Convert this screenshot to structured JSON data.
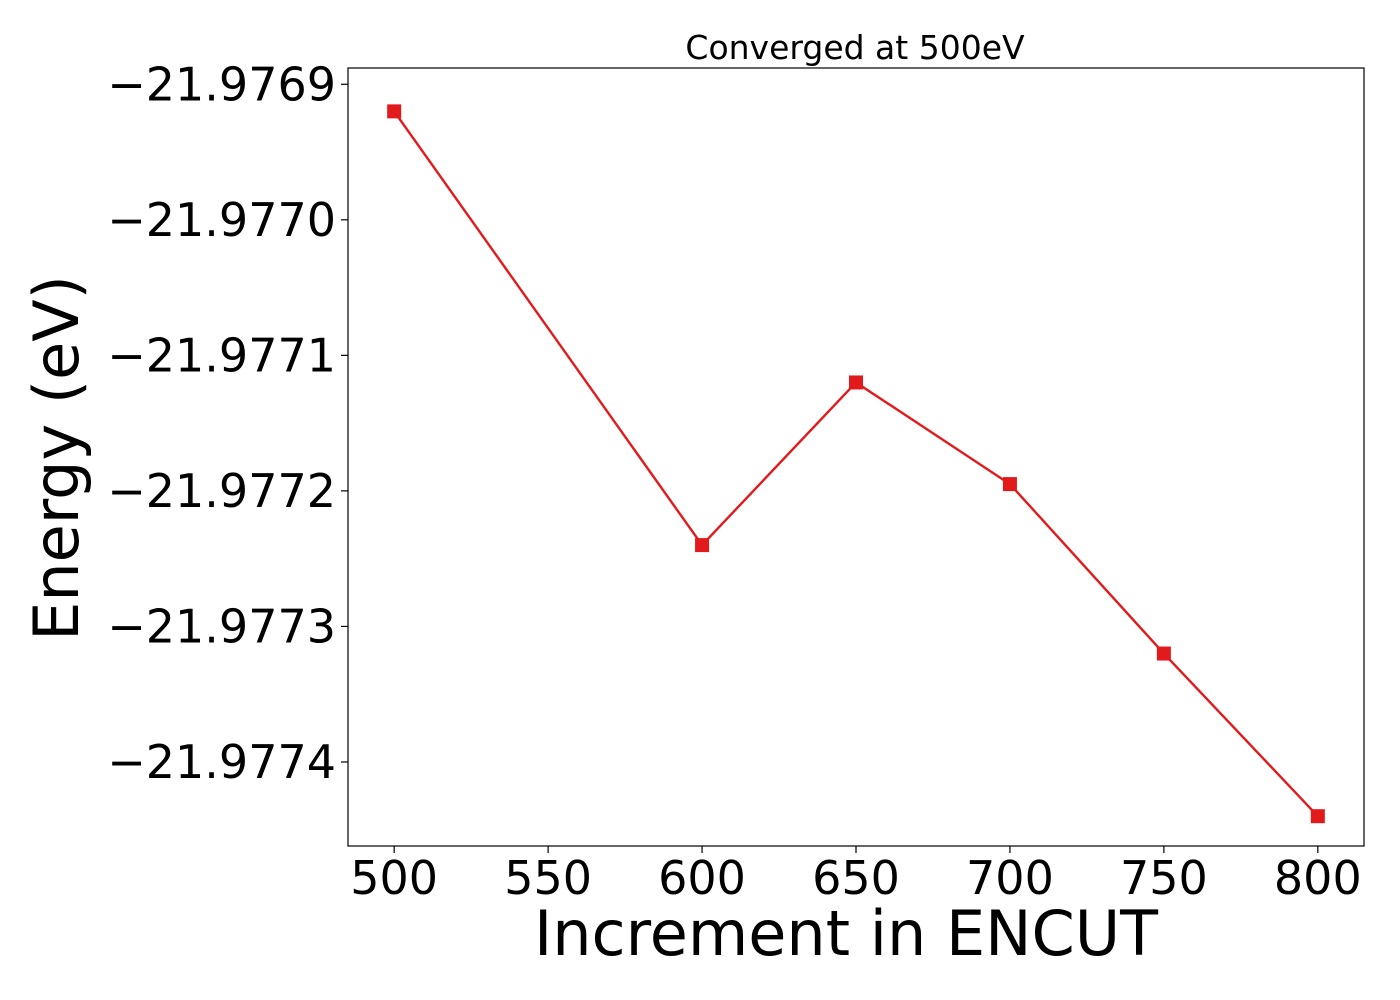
{
  "chart_data": {
    "type": "line",
    "title": "Converged at 500eV",
    "xlabel": "Increment in ENCUT",
    "ylabel": "Energy (eV)",
    "x": [
      500,
      600,
      650,
      700,
      750,
      800
    ],
    "series": [
      {
        "values": [
          -21.97692,
          -21.97724,
          -21.97712,
          -21.977195,
          -21.97732,
          -21.97744
        ],
        "color": "#e31a1c",
        "marker": "square"
      }
    ],
    "xticks": [
      500,
      550,
      600,
      650,
      700,
      750,
      800
    ],
    "xtick_labels": [
      "500",
      "550",
      "600",
      "650",
      "700",
      "750",
      "800"
    ],
    "yticks": [
      -21.9769,
      -21.977,
      -21.9771,
      -21.9772,
      -21.9773,
      -21.9774
    ],
    "ytick_labels": [
      "−21.9769",
      "−21.9770",
      "−21.9771",
      "−21.9772",
      "−21.9773",
      "−21.9774"
    ],
    "xlim": [
      485,
      815
    ],
    "ylim": [
      -21.977462,
      -21.976888
    ],
    "grid": false,
    "legend": false
  }
}
